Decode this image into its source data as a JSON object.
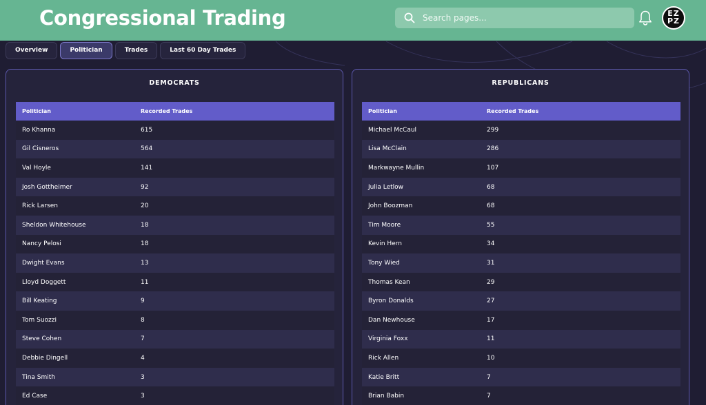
{
  "header": {
    "title": "Congressional Trading",
    "search_placeholder": "Search pages...",
    "avatar_text": "EZ\nPZ"
  },
  "tabs": [
    {
      "label": "Overview",
      "active": false
    },
    {
      "label": "Politician",
      "active": true
    },
    {
      "label": "Trades",
      "active": false
    },
    {
      "label": "Last 60 Day Trades",
      "active": false
    }
  ],
  "democrats": {
    "title": "DEMOCRATS",
    "col_politician": "Politician",
    "col_trades": "Recorded Trades",
    "rows": [
      {
        "name": "Ro Khanna",
        "trades": "615"
      },
      {
        "name": "Gil Cisneros",
        "trades": "564"
      },
      {
        "name": "Val Hoyle",
        "trades": "141"
      },
      {
        "name": "Josh Gottheimer",
        "trades": "92"
      },
      {
        "name": "Rick Larsen",
        "trades": "20"
      },
      {
        "name": "Sheldon Whitehouse",
        "trades": "18"
      },
      {
        "name": "Nancy Pelosi",
        "trades": "18"
      },
      {
        "name": "Dwight Evans",
        "trades": "13"
      },
      {
        "name": "Lloyd Doggett",
        "trades": "11"
      },
      {
        "name": "Bill Keating",
        "trades": "9"
      },
      {
        "name": "Tom Suozzi",
        "trades": "8"
      },
      {
        "name": "Steve Cohen",
        "trades": "7"
      },
      {
        "name": "Debbie Dingell",
        "trades": "4"
      },
      {
        "name": "Tina Smith",
        "trades": "3"
      },
      {
        "name": "Ed Case",
        "trades": "3"
      }
    ]
  },
  "republicans": {
    "title": "REPUBLICANS",
    "col_politician": "Politician",
    "col_trades": "Recorded Trades",
    "rows": [
      {
        "name": "Michael McCaul",
        "trades": "299"
      },
      {
        "name": "Lisa McClain",
        "trades": "286"
      },
      {
        "name": "Markwayne Mullin",
        "trades": "107"
      },
      {
        "name": "Julia Letlow",
        "trades": "68"
      },
      {
        "name": "John Boozman",
        "trades": "68"
      },
      {
        "name": "Tim Moore",
        "trades": "55"
      },
      {
        "name": "Kevin Hern",
        "trades": "34"
      },
      {
        "name": "Tony Wied",
        "trades": "31"
      },
      {
        "name": "Thomas Kean",
        "trades": "29"
      },
      {
        "name": "Byron Donalds",
        "trades": "27"
      },
      {
        "name": "Dan Newhouse",
        "trades": "17"
      },
      {
        "name": "Virginia Foxx",
        "trades": "11"
      },
      {
        "name": "Rick Allen",
        "trades": "10"
      },
      {
        "name": "Katie Britt",
        "trades": "7"
      },
      {
        "name": "Brian Babin",
        "trades": "7"
      }
    ]
  }
}
